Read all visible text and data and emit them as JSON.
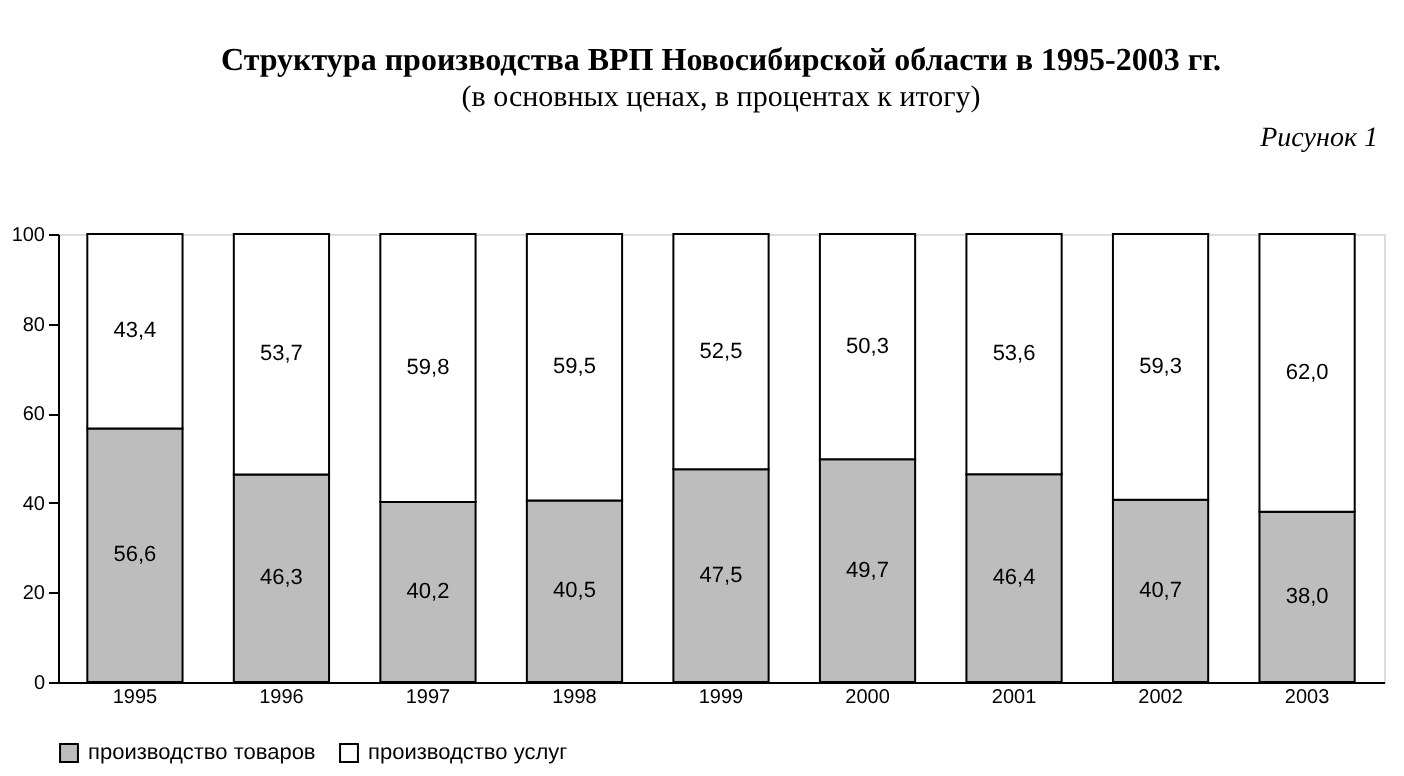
{
  "chart_data": {
    "type": "bar",
    "stacked": true,
    "title": "Структура производства ВРП Новосибирской области в 1995-2003 гг.",
    "subtitle": "(в основных ценах, в процентах к итогу)",
    "annotations": [
      "Рисунок 1"
    ],
    "categories": [
      "1995",
      "1996",
      "1997",
      "1998",
      "1999",
      "2000",
      "2001",
      "2002",
      "2003"
    ],
    "series": [
      {
        "name": "производство товаров",
        "color": "#bdbdbd",
        "values": [
          56.6,
          46.3,
          40.2,
          40.5,
          47.5,
          49.7,
          46.4,
          40.7,
          38.0
        ],
        "value_labels": [
          "56,6",
          "46,3",
          "40,2",
          "40,5",
          "47,5",
          "49,7",
          "46,4",
          "40,7",
          "38,0"
        ]
      },
      {
        "name": "производство услуг",
        "color": "#ffffff",
        "values": [
          43.4,
          53.7,
          59.8,
          59.5,
          52.5,
          50.3,
          53.6,
          59.3,
          62.0
        ],
        "value_labels": [
          "43,4",
          "53,7",
          "59,8",
          "59,5",
          "52,5",
          "50,3",
          "53,6",
          "59,3",
          "62,0"
        ]
      }
    ],
    "ylim": [
      0,
      100
    ],
    "yticks": [
      0,
      20,
      40,
      60,
      80,
      100
    ],
    "grid": false,
    "legend": "bottom"
  }
}
